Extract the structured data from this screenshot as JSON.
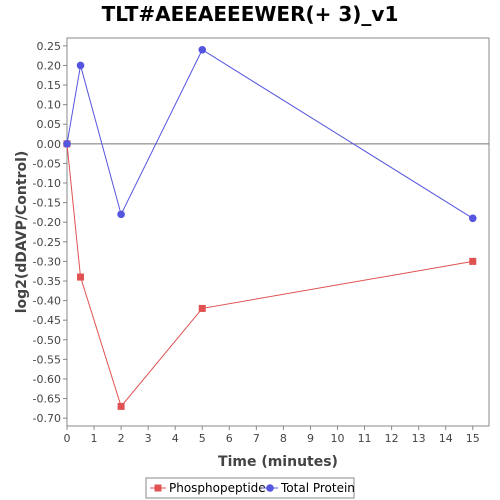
{
  "chart_data": {
    "type": "line",
    "title": "TLT#AEEAEEEWER(+ 3)_v1",
    "xlabel": "Time (minutes)",
    "ylabel": "log2(dDAVP/Control)",
    "xlim": [
      0,
      15.6
    ],
    "ylim": [
      -0.72,
      0.27
    ],
    "xticks": [
      0,
      1,
      2,
      3,
      4,
      5,
      6,
      7,
      8,
      9,
      10,
      11,
      12,
      13,
      14,
      15
    ],
    "yticks": [
      0.25,
      0.2,
      0.15,
      0.1,
      0.05,
      0.0,
      -0.05,
      -0.1,
      -0.15,
      -0.2,
      -0.25,
      -0.3,
      -0.35,
      -0.4,
      -0.45,
      -0.5,
      -0.55,
      -0.6,
      -0.65,
      -0.7
    ],
    "ytick_labels": [
      "0.25",
      "0.20",
      "0.15",
      "0.10",
      "0.05",
      "0.00",
      "-0.05",
      "-0.10",
      "-0.15",
      "-0.20",
      "-0.25",
      "-0.30",
      "-0.35",
      "-0.40",
      "-0.45",
      "-0.50",
      "-0.55",
      "-0.60",
      "-0.65",
      "-0.70"
    ],
    "grid": false,
    "zero_line": true,
    "legend_position": "bottom",
    "series": [
      {
        "name": "Phosphopeptide",
        "color": "#e05252",
        "marker": "square",
        "x": [
          0,
          0.5,
          2,
          5,
          15
        ],
        "y": [
          0.0,
          -0.34,
          -0.67,
          -0.42,
          -0.3
        ]
      },
      {
        "name": "Total Protein",
        "color": "#5555e0",
        "marker": "circle",
        "x": [
          0,
          0.5,
          2,
          5,
          15
        ],
        "y": [
          0.0,
          0.2,
          -0.18,
          0.24,
          -0.19
        ]
      }
    ]
  }
}
